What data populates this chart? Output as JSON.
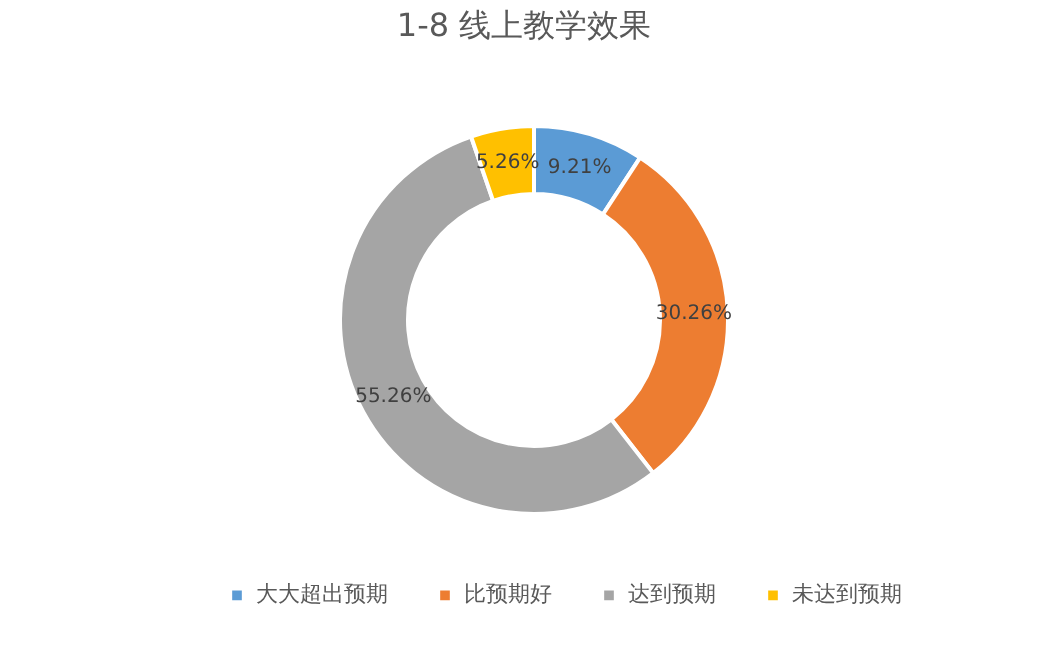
{
  "chart_data": {
    "type": "donut",
    "title": "1-8 线上教学效果",
    "categories": [
      "大大超出预期",
      "比预期好",
      "达到预期",
      "未达到预期"
    ],
    "values": [
      9.21,
      30.26,
      55.26,
      5.26
    ],
    "colors": [
      "#5b9bd5",
      "#ed7d31",
      "#a5a5a5",
      "#ffc000"
    ],
    "value_labels": [
      "9.21%",
      "30.26%",
      "55.26%",
      "5.26%"
    ],
    "legend": "bottom"
  }
}
